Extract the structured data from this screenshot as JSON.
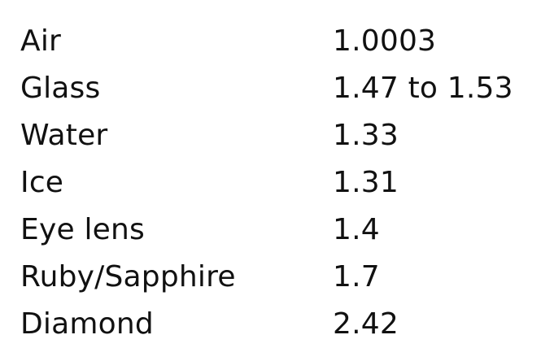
{
  "table": {
    "rows": [
      {
        "material": "Air",
        "value": "1.0003"
      },
      {
        "material": "Glass",
        "value": "1.47 to 1.53"
      },
      {
        "material": "Water",
        "value": "1.33"
      },
      {
        "material": "Ice",
        "value": "1.31"
      },
      {
        "material": "Eye lens",
        "value": "1.4"
      },
      {
        "material": "Ruby/Sapphire",
        "value": "1.7"
      },
      {
        "material": "Diamond",
        "value": "2.42"
      }
    ]
  }
}
